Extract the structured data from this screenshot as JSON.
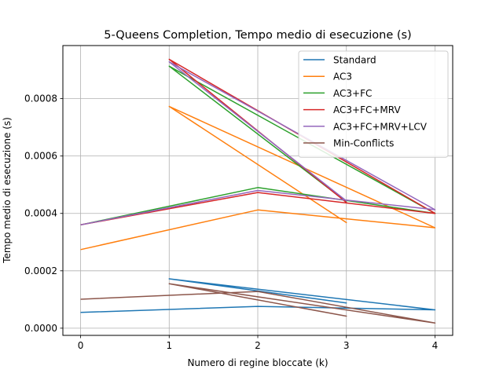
{
  "chart_data": {
    "type": "line",
    "title": "5-Queens Completion, Tempo medio di esecuzione (s)",
    "xlabel": "Numero di regine bloccate (k)",
    "ylabel": "Tempo medio di esecuzione (s)",
    "xlim": [
      -0.2,
      4.2
    ],
    "ylim": [
      -2.5e-05,
      0.000985
    ],
    "x_ticks": [
      0,
      1,
      2,
      3,
      4
    ],
    "x_tick_labels": [
      "0",
      "1",
      "2",
      "3",
      "4"
    ],
    "y_ticks": [
      0.0,
      0.0002,
      0.0004,
      0.0006,
      0.0008
    ],
    "y_tick_labels": [
      "0.0000",
      "0.0002",
      "0.0004",
      "0.0006",
      "0.0008"
    ],
    "grid": true,
    "legend_position": "top-right",
    "series": [
      {
        "name": "Standard",
        "color": "#1f77b4",
        "x": [
          0,
          2,
          4,
          1,
          3,
          1,
          4,
          1,
          3
        ],
        "y": [
          5.5e-05,
          7.6e-05,
          6.4e-05,
          0.000172,
          8.8e-05,
          0.000172,
          6.4e-05,
          0.000172,
          8.8e-05
        ]
      },
      {
        "name": "AC3",
        "color": "#ff7f0e",
        "x": [
          0,
          2,
          4,
          1,
          3,
          1,
          4,
          1,
          3
        ],
        "y": [
          0.000274,
          0.000412,
          0.00035,
          0.000773,
          0.000368,
          0.000773,
          0.00035,
          0.000773,
          0.000368
        ]
      },
      {
        "name": "AC3+FC",
        "color": "#2ca02c",
        "x": [
          0,
          2,
          4,
          1,
          3,
          1,
          4,
          1,
          3
        ],
        "y": [
          0.00036,
          0.00049,
          0.0004,
          0.000913,
          0.00044,
          0.000913,
          0.0004,
          0.000913,
          0.00044
        ]
      },
      {
        "name": "AC3+FC+MRV",
        "color": "#d62728",
        "x": [
          0,
          2,
          4,
          1,
          3,
          1,
          4,
          1,
          3
        ],
        "y": [
          0.00036,
          0.000473,
          0.0004,
          0.000937,
          0.000438,
          0.000937,
          0.0004,
          0.000937,
          0.000438
        ]
      },
      {
        "name": "AC3+FC+MRV+LCV",
        "color": "#9467bd",
        "x": [
          0,
          2,
          4,
          1,
          3,
          1,
          4,
          1,
          3
        ],
        "y": [
          0.00036,
          0.00048,
          0.000413,
          0.000928,
          0.000444,
          0.000928,
          0.000413,
          0.000928,
          0.000444
        ]
      },
      {
        "name": "Min-Conflicts",
        "color": "#8c564b",
        "x": [
          0,
          2,
          4,
          1,
          3,
          1,
          4,
          1,
          3
        ],
        "y": [
          0.000101,
          0.000128,
          1.8e-05,
          0.000155,
          4.2e-05,
          0.000155,
          1.8e-05,
          0.000155,
          4.2e-05
        ]
      }
    ]
  }
}
